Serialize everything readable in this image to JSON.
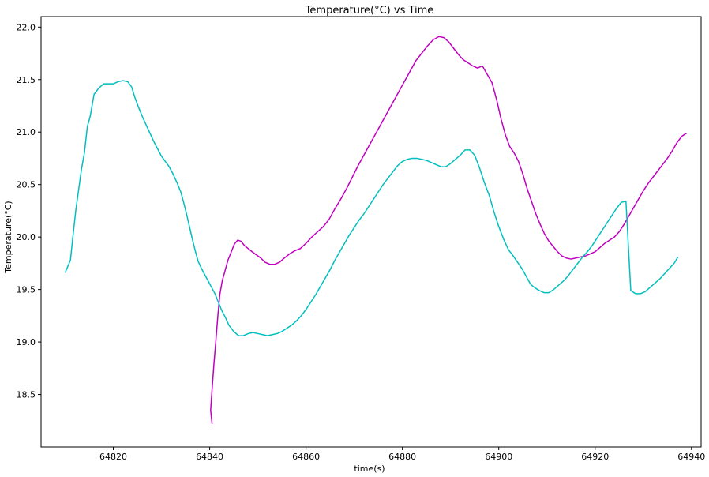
{
  "chart_data": {
    "type": "line",
    "title": "Temperature(°C) vs Time",
    "xlabel": "time(s)",
    "ylabel": "Temperature(°C)",
    "xlim": [
      64805,
      64942
    ],
    "ylim": [
      18.0,
      22.1
    ],
    "xticks": [
      64820,
      64840,
      64860,
      64880,
      64900,
      64920,
      64940
    ],
    "yticks": [
      18.5,
      19.0,
      19.5,
      20.0,
      20.5,
      21.0,
      21.5,
      22.0
    ],
    "xtick_labels": [
      "64820",
      "64840",
      "64860",
      "64880",
      "64900",
      "64920",
      "64940"
    ],
    "ytick_labels": [
      "18.5",
      "19.0",
      "19.5",
      "20.0",
      "20.5",
      "21.0",
      "21.5",
      "22.0"
    ],
    "grid": false,
    "legend": "none",
    "series": [
      {
        "color": "#c000c0",
        "x": [
          64840.5,
          64840.2,
          64840.5,
          64840.9,
          64841.3,
          64841.7,
          64842.1,
          64842.6,
          64843.2,
          64843.8,
          64844.5,
          64845.1,
          64845.8,
          64846.5,
          64847.2,
          64848,
          64848.8,
          64849.7,
          64850.6,
          64851.5,
          64852.5,
          64853.5,
          64854.5,
          64855.5,
          64856.6,
          64857.7,
          64858.8,
          64860,
          64861.2,
          64862.4,
          64863.6,
          64864.8,
          64866,
          64867.2,
          64868.4,
          64869.6,
          64870.8,
          64872,
          64873.2,
          64874.4,
          64875.6,
          64876.8,
          64878,
          64879.2,
          64880.4,
          64881.6,
          64882.8,
          64884,
          64885.2,
          64886.4,
          64887.6,
          64888.6,
          64889.6,
          64890.6,
          64891.6,
          64892.6,
          64893.6,
          64894.6,
          64895.6,
          64896.6,
          64897.6,
          64898.6,
          64899.6,
          64900.5,
          64901.4,
          64902.3,
          64903.2,
          64904.1,
          64905,
          64905.9,
          64906.8,
          64907.7,
          64908.6,
          64909.5,
          64910.4,
          64911.3,
          64912.2,
          64913.1,
          64914,
          64915,
          64916,
          64917,
          64918,
          64919,
          64920,
          64921,
          64922,
          64923,
          64924,
          64925,
          64926,
          64927,
          64928,
          64929,
          64930,
          64931,
          64932,
          64933,
          64934,
          64935,
          64936,
          64937,
          64938,
          64939
        ],
        "y": [
          18.22,
          18.35,
          18.55,
          18.8,
          19.02,
          19.25,
          19.45,
          19.58,
          19.68,
          19.78,
          19.86,
          19.93,
          19.97,
          19.96,
          19.92,
          19.89,
          19.86,
          19.83,
          19.8,
          19.76,
          19.74,
          19.74,
          19.76,
          19.8,
          19.84,
          19.87,
          19.89,
          19.94,
          20.0,
          20.05,
          20.1,
          20.17,
          20.27,
          20.36,
          20.46,
          20.57,
          20.68,
          20.78,
          20.88,
          20.98,
          21.08,
          21.18,
          21.28,
          21.38,
          21.48,
          21.58,
          21.68,
          21.75,
          21.82,
          21.88,
          21.91,
          21.9,
          21.86,
          21.8,
          21.74,
          21.69,
          21.66,
          21.63,
          21.61,
          21.63,
          21.55,
          21.47,
          21.3,
          21.12,
          20.97,
          20.86,
          20.8,
          20.72,
          20.6,
          20.46,
          20.34,
          20.22,
          20.12,
          20.03,
          19.96,
          19.91,
          19.86,
          19.82,
          19.8,
          19.79,
          19.8,
          19.81,
          19.82,
          19.84,
          19.86,
          19.9,
          19.94,
          19.97,
          20.0,
          20.05,
          20.12,
          20.2,
          20.28,
          20.36,
          20.44,
          20.51,
          20.57,
          20.63,
          20.69,
          20.75,
          20.82,
          20.9,
          20.96,
          20.99
        ]
      },
      {
        "color": "#00bfbf",
        "x": [
          64810,
          64811.1,
          64811.6,
          64812.2,
          64812.8,
          64813.4,
          64814,
          64814.6,
          64815.2,
          64816,
          64817,
          64818,
          64819,
          64820,
          64821,
          64822,
          64823,
          64823.8,
          64824.4,
          64825.2,
          64826,
          64826.8,
          64827.6,
          64828.4,
          64829.2,
          64830,
          64830.8,
          64831.6,
          64832.4,
          64833.2,
          64834,
          64834.6,
          64835.2,
          64835.8,
          64836.4,
          64837,
          64837.6,
          64838.3,
          64839,
          64839.7,
          64840.4,
          64841.1,
          64841.8,
          64842.5,
          64843.2,
          64844,
          64845,
          64846,
          64847,
          64848,
          64849,
          64850,
          64851,
          64852,
          64853,
          64854,
          64855,
          64856,
          64857,
          64858,
          64859,
          64860,
          64861,
          64862,
          64863,
          64864,
          64865,
          64866,
          64867,
          64868,
          64869,
          64870,
          64871,
          64872,
          64873,
          64874,
          64875,
          64876,
          64877,
          64878,
          64879,
          64880,
          64881,
          64882,
          64883,
          64884,
          64885,
          64886,
          64887,
          64888,
          64889,
          64890,
          64891,
          64892,
          64893,
          64894,
          64895,
          64896,
          64897,
          64898,
          64899,
          64900,
          64901,
          64902,
          64903,
          64903.6,
          64904.2,
          64904.8,
          64905.4,
          64906,
          64906.6,
          64907.4,
          64908.4,
          64909.4,
          64910.4,
          64911.4,
          64912.4,
          64913.4,
          64914.4,
          64915.4,
          64916.4,
          64917.4,
          64918.4,
          64919.4,
          64920.4,
          64921.4,
          64922.4,
          64923.4,
          64924.4,
          64925.4,
          64926.4,
          64927.4,
          64928.4,
          64929.4,
          64930.4,
          64931.4,
          64932.4,
          64933.4,
          64934.4,
          64935.4,
          64936.4,
          64937.2
        ],
        "y": [
          19.66,
          19.78,
          20.0,
          20.25,
          20.45,
          20.65,
          20.8,
          21.05,
          21.15,
          21.36,
          21.42,
          21.46,
          21.46,
          21.46,
          21.48,
          21.49,
          21.48,
          21.43,
          21.34,
          21.24,
          21.15,
          21.07,
          20.99,
          20.91,
          20.84,
          20.77,
          20.72,
          20.67,
          20.6,
          20.52,
          20.43,
          20.33,
          20.22,
          20.1,
          19.98,
          19.87,
          19.77,
          19.7,
          19.64,
          19.58,
          19.52,
          19.46,
          19.38,
          19.3,
          19.24,
          19.16,
          19.1,
          19.06,
          19.06,
          19.08,
          19.09,
          19.08,
          19.07,
          19.06,
          19.07,
          19.08,
          19.1,
          19.13,
          19.16,
          19.2,
          19.25,
          19.31,
          19.38,
          19.45,
          19.53,
          19.61,
          19.69,
          19.78,
          19.86,
          19.94,
          20.02,
          20.09,
          20.16,
          20.22,
          20.29,
          20.36,
          20.43,
          20.5,
          20.56,
          20.62,
          20.68,
          20.72,
          20.74,
          20.75,
          20.75,
          20.74,
          20.73,
          20.71,
          20.69,
          20.67,
          20.67,
          20.7,
          20.74,
          20.78,
          20.83,
          20.83,
          20.78,
          20.66,
          20.52,
          20.4,
          20.24,
          20.1,
          19.98,
          19.88,
          19.82,
          19.78,
          19.74,
          19.7,
          19.65,
          19.6,
          19.55,
          19.52,
          19.49,
          19.47,
          19.47,
          19.5,
          19.54,
          19.58,
          19.63,
          19.69,
          19.75,
          19.81,
          19.86,
          19.92,
          19.99,
          20.06,
          20.13,
          20.2,
          20.27,
          20.33,
          20.34,
          19.49,
          19.46,
          19.46,
          19.48,
          19.52,
          19.56,
          19.6,
          19.65,
          19.7,
          19.75,
          19.81
        ],
        "note": ""
      }
    ]
  }
}
